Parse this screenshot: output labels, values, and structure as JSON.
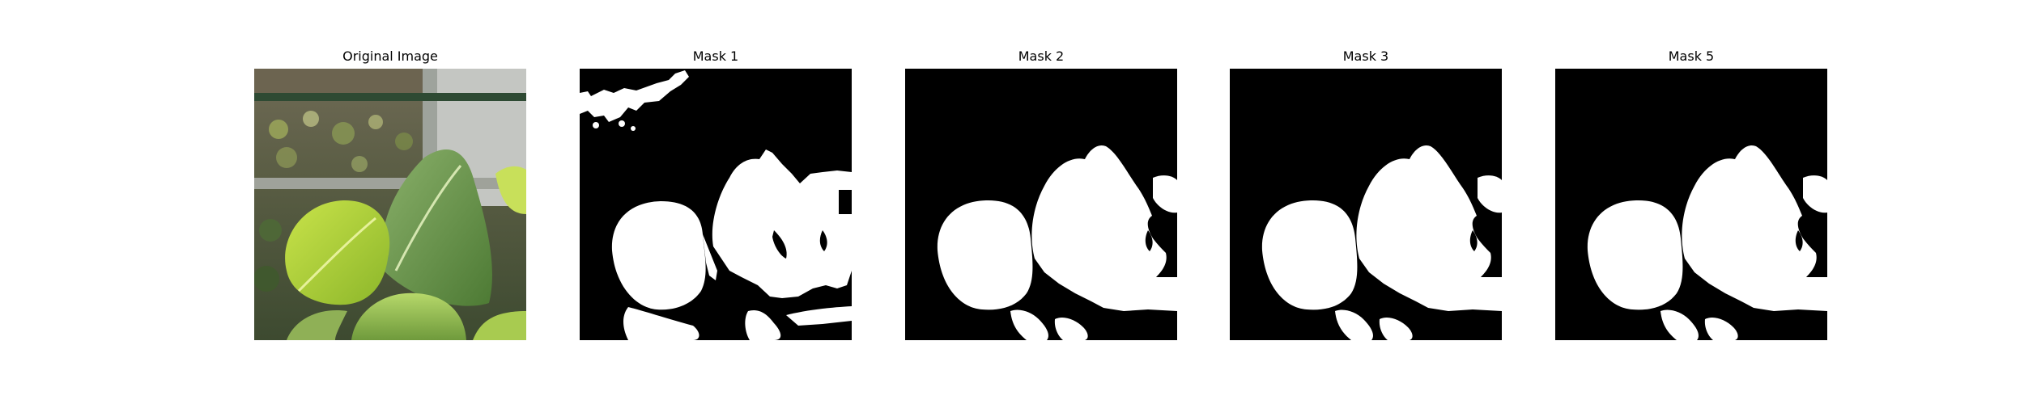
{
  "figure": {
    "panels": [
      {
        "title": "Original Image",
        "kind": "photo"
      },
      {
        "title": "Mask 1",
        "kind": "mask"
      },
      {
        "title": "Mask 2",
        "kind": "mask"
      },
      {
        "title": "Mask 3",
        "kind": "mask"
      },
      {
        "title": "Mask 5",
        "kind": "mask"
      }
    ]
  },
  "colors": {
    "background": "#ffffff",
    "mask_background": "#000000",
    "mask_foreground": "#ffffff",
    "leaf_light": "#a7cf34",
    "leaf_dark": "#5f8d3a",
    "photo_backdrop": "#6b6e55",
    "railing": "#2e4a33"
  }
}
